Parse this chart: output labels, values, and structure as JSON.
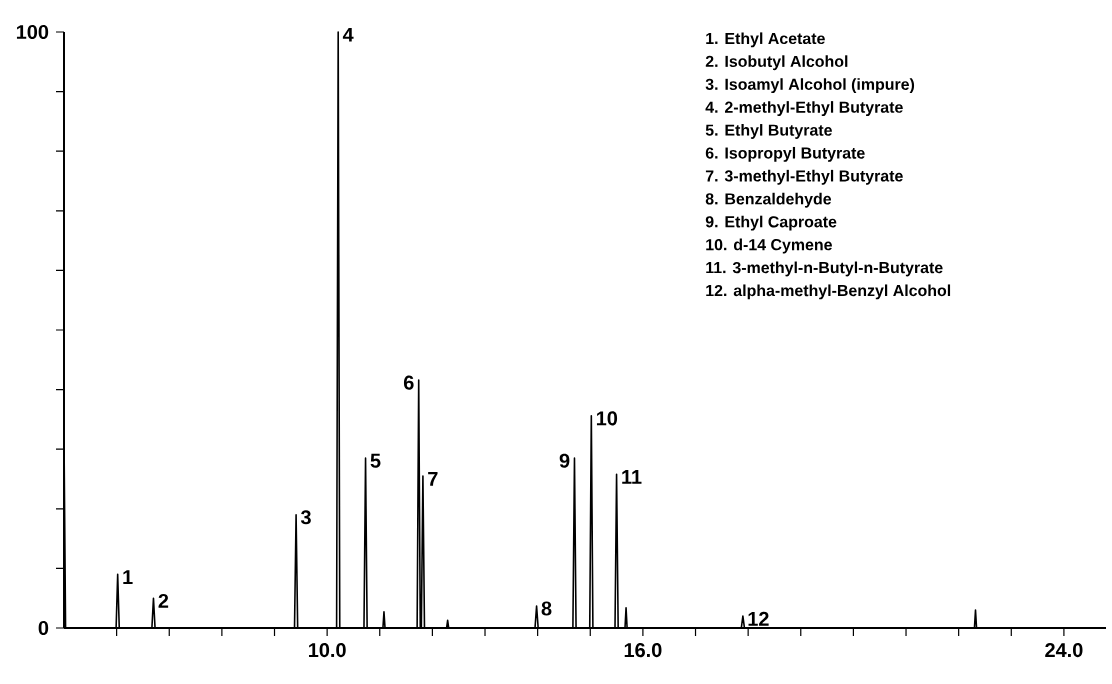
{
  "chart_data": {
    "type": "line",
    "color": "#000000",
    "marker": "none",
    "x": [
      5.0,
      5.03,
      5.99,
      6.02,
      6.05,
      6.67,
      6.7,
      6.73,
      9.38,
      9.41,
      9.44,
      10.18,
      10.21,
      10.24,
      10.7,
      10.73,
      10.76,
      11.06,
      11.08,
      11.1,
      11.71,
      11.74,
      11.77,
      11.79,
      11.82,
      11.85,
      12.27,
      12.29,
      12.31,
      13.95,
      13.98,
      14.01,
      14.67,
      14.7,
      14.73,
      14.99,
      15.02,
      15.05,
      15.47,
      15.5,
      15.53,
      15.66,
      15.68,
      15.7,
      17.87,
      17.9,
      17.93,
      22.3,
      22.32,
      22.34,
      24.8
    ],
    "values": [
      32,
      0,
      0,
      9,
      0,
      0,
      5,
      0,
      0,
      19,
      0,
      0,
      100,
      0,
      0,
      28.5,
      0,
      0,
      2.7,
      0,
      0,
      41.6,
      0,
      0,
      25.5,
      0,
      0,
      1.3,
      0,
      0,
      3.7,
      0,
      0,
      28.5,
      0,
      0,
      35.6,
      0,
      0,
      25.8,
      0,
      0,
      3.4,
      0,
      0,
      2,
      0,
      0,
      3,
      0,
      0
    ],
    "xlim": [
      5,
      24.8
    ],
    "xticks": [
      {
        "value": 6,
        "label": null
      },
      {
        "value": 7,
        "label": null
      },
      {
        "value": 8,
        "label": null
      },
      {
        "value": 9,
        "label": null
      },
      {
        "value": 10,
        "label": "10.0"
      },
      {
        "value": 11,
        "label": null
      },
      {
        "value": 12,
        "label": null
      },
      {
        "value": 13,
        "label": null
      },
      {
        "value": 14,
        "label": null
      },
      {
        "value": 15,
        "label": null
      },
      {
        "value": 16,
        "label": "16.0"
      },
      {
        "value": 17,
        "label": null
      },
      {
        "value": 18,
        "label": null
      },
      {
        "value": 19,
        "label": null
      },
      {
        "value": 20,
        "label": null
      },
      {
        "value": 21,
        "label": null
      },
      {
        "value": 22,
        "label": null
      },
      {
        "value": 23,
        "label": null
      },
      {
        "value": 24,
        "label": "24.0"
      }
    ],
    "ylim": [
      0,
      100
    ],
    "yticks": [
      0,
      {
        "value": 10,
        "label": null
      },
      {
        "value": 20,
        "label": null
      },
      {
        "value": 30,
        "label": null
      },
      {
        "value": 40,
        "label": null
      },
      {
        "value": 50,
        "label": null
      },
      {
        "value": 60,
        "label": null
      },
      {
        "value": 70,
        "label": null
      },
      {
        "value": 80,
        "label": null
      },
      {
        "value": 90,
        "label": null
      },
      100
    ],
    "annotations": [
      {
        "text": "1",
        "x": 6.02,
        "y": 9
      },
      {
        "text": "2",
        "x": 6.7,
        "y": 5
      },
      {
        "text": "3",
        "x": 9.41,
        "y": 19
      },
      {
        "text": "4",
        "x": 10.21,
        "y": 100
      },
      {
        "text": "5",
        "x": 10.73,
        "y": 28.5
      },
      {
        "text": "6",
        "x": 11.74,
        "y": 41.6
      },
      {
        "text": "7",
        "x": 11.82,
        "y": 25.5
      },
      {
        "text": "8",
        "x": 13.98,
        "y": 3.7
      },
      {
        "text": "9",
        "x": 14.7,
        "y": 28.5
      },
      {
        "text": "10",
        "x": 15.02,
        "y": 35.6
      },
      {
        "text": "11",
        "x": 15.5,
        "y": 25.8
      },
      {
        "text": "12",
        "x": 17.9,
        "y": 2
      },
      "1. Ethyl Acetate",
      "2. Isobutyl Alcohol",
      "3. Isoamyl Alcohol (impure)",
      "4. 2-methyl-Ethyl Butyrate",
      "5. Ethyl Butyrate",
      "6. Isopropyl Butyrate",
      "7. 3-methyl-Ethyl Butyrate",
      "8. Benzaldehyde",
      "9. Ethyl Caproate",
      "10. d-14 Cymene",
      "11. 3-methyl-n-Butyl-n-Butyrate",
      "12. alpha-methyl-Benzyl Alcohol"
    ]
  }
}
